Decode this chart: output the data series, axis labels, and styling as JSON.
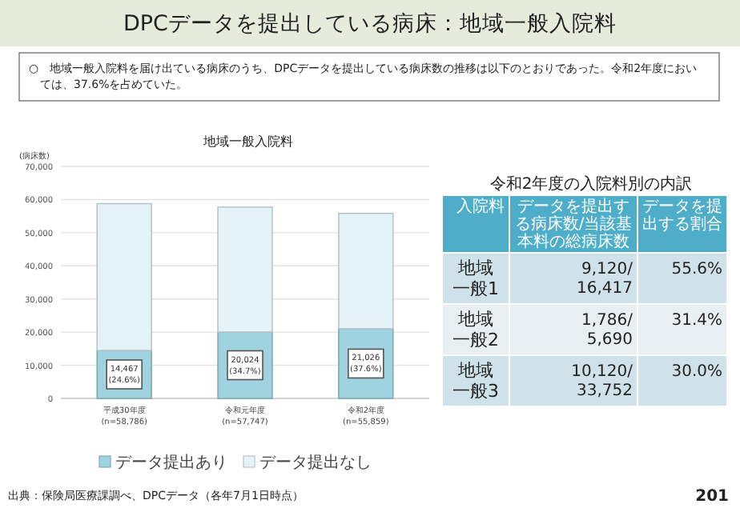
{
  "chart_data": [
    {
      "type": "bar",
      "stacked": true,
      "title": "地域一般入院料",
      "ylabel": "(病床数)",
      "categories": [
        "平成30年度\n(n=58,786)",
        "令和元年度\n(n=57,747)",
        "令和2年度\n(n=55,859)"
      ],
      "series": [
        {
          "name": "データ提出あり",
          "color": "#9fd3e0",
          "values": [
            14467,
            20024,
            21026
          ],
          "value_labels": [
            "14,467\n(24.6%)",
            "20,024\n(34.7%)",
            "21,026\n(37.6%)"
          ]
        },
        {
          "name": "データ提出なし",
          "color": "#e4f3f8",
          "values": [
            44300,
            37700,
            34800
          ]
        }
      ],
      "ylim": [
        0,
        70000
      ],
      "yticks": [
        0,
        {
          "value": 10000,
          "label": "10,000"
        },
        {
          "value": 20000,
          "label": "20,000"
        },
        {
          "value": 30000,
          "label": "30,000"
        },
        {
          "value": 40000,
          "label": "40,000"
        },
        {
          "value": 50000,
          "label": "50,000"
        },
        {
          "value": 60000,
          "label": "60,000"
        },
        {
          "value": 70000,
          "label": "70,000"
        }
      ],
      "grid": "y",
      "legend": "bottom",
      "annotations": [
        "DPCデータを提出している病床：地域一般入院料",
        "○　地域一般入院料を届け出ている病床のうち、DPCデータを提出している病床数の推移は以下のとおりであった。令和2年度においては、37.6%を占めていた。",
        "出典：保険局医療課調べ、DPCデータ（各年7月1日時点）",
        "201"
      ]
    },
    {
      "type": "other",
      "title": "令和2年度の入院料別の内訳",
      "annotations": [
        "入院料",
        "データを提出する病床数/当該基本料の総病床数",
        "データを提出する割合",
        "地域一般1",
        "9,120/16,417",
        "55.6%",
        "地域一般2",
        "1,786/5,690",
        "31.4%",
        "地域一般3",
        "10,120/33,752",
        "30.0%"
      ]
    }
  ]
}
